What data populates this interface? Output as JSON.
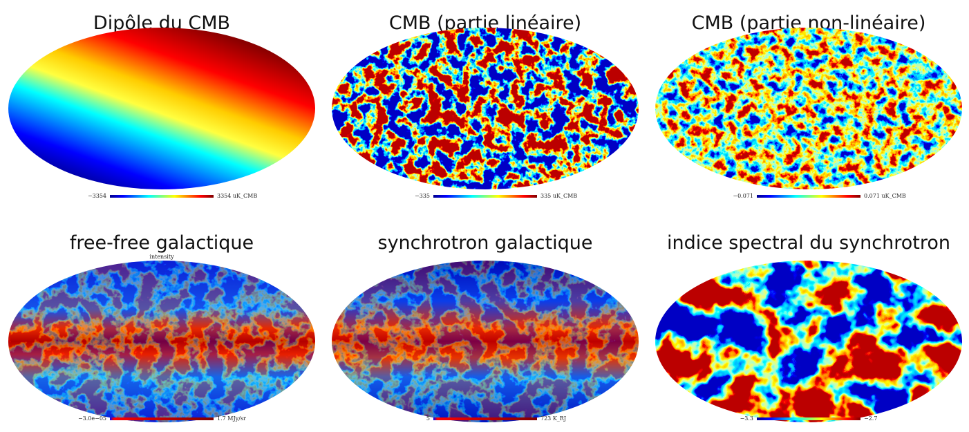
{
  "panels": [
    {
      "title": "Dipôle du CMB",
      "min_label": "−3354",
      "max_label": "3354 uK_CMB"
    },
    {
      "title": "CMB (partie linéaire)",
      "min_label": "−335",
      "max_label": "335 uK_CMB"
    },
    {
      "title": "CMB (partie non-linéaire)",
      "min_label": "−0.071",
      "max_label": "0.071 uK_CMB"
    },
    {
      "title": "free-free galactique",
      "map_label": "intensity",
      "min_label": "−3.0e−05",
      "max_label": "1.7 MJy/sr"
    },
    {
      "title": "synchrotron galactique",
      "min_label": "5",
      "max_label": "723 K_RJ"
    },
    {
      "title": "indice spectral du synchrotron",
      "min_label": "−3.3",
      "max_label": "−2.7"
    }
  ]
}
